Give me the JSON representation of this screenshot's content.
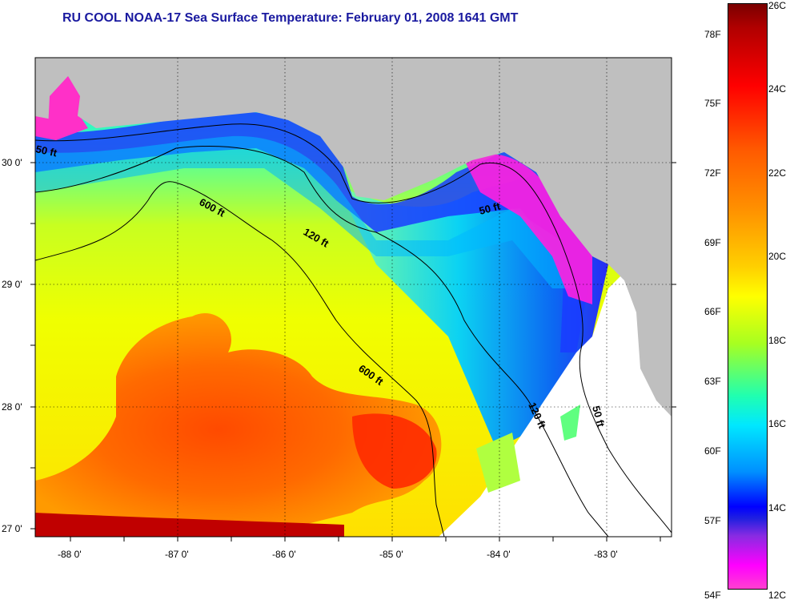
{
  "title": "RU COOL  NOAA-17  Sea Surface Temperature:  February 01, 2008 1641 GMT",
  "map": {
    "lat_labels": [
      "30 0'",
      "29 0'",
      "28 0'",
      "27 0'"
    ],
    "lon_labels": [
      "-88 0'",
      "-87 0'",
      "-86 0'",
      "-85 0'",
      "-84 0'",
      "-83 0'"
    ],
    "contour_labels": [
      "50 ft",
      "600 ft",
      "120 ft",
      "50 ft",
      "600 ft",
      "120 ft",
      "50 ft"
    ],
    "land_color": "#bfbfbf",
    "no_data_color": "#ffffff"
  },
  "colorbar": {
    "fahrenheit_labels": [
      "78F",
      "75F",
      "72F",
      "69F",
      "66F",
      "63F",
      "60F",
      "57F",
      "54F"
    ],
    "celsius_labels": [
      "26C",
      "24C",
      "22C",
      "20C",
      "18C",
      "16C",
      "14C",
      "12C"
    ]
  }
}
